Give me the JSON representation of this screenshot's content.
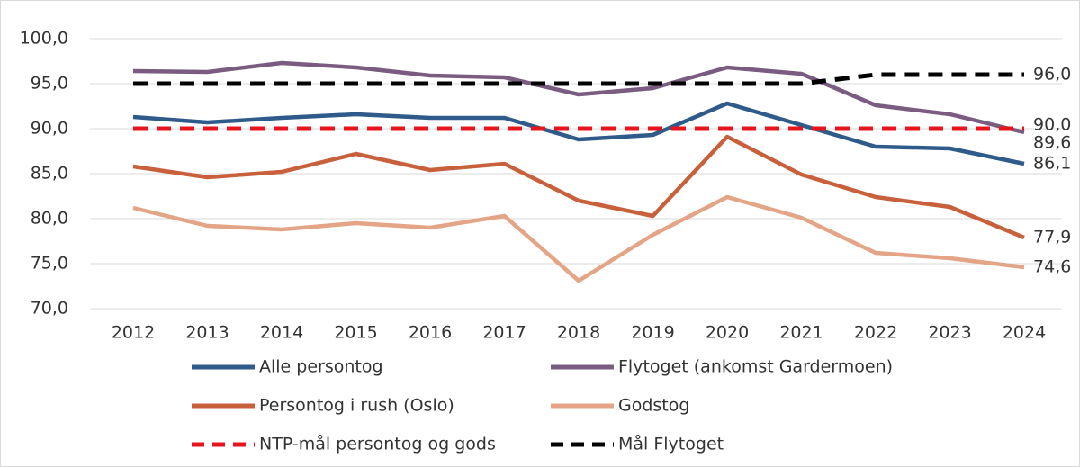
{
  "chart_data": {
    "type": "line",
    "categories": [
      "2012",
      "2013",
      "2014",
      "2015",
      "2016",
      "2017",
      "2018",
      "2019",
      "2020",
      "2021",
      "2022",
      "2023",
      "2024"
    ],
    "ylim": [
      70,
      100
    ],
    "yticks": [
      {
        "value": 70,
        "label": "70,0"
      },
      {
        "value": 75,
        "label": "75,0"
      },
      {
        "value": 80,
        "label": "80,0"
      },
      {
        "value": 85,
        "label": "85,0"
      },
      {
        "value": 90,
        "label": "90,0"
      },
      {
        "value": 95,
        "label": "95,0"
      },
      {
        "value": 100,
        "label": "100,0"
      }
    ],
    "grid": true,
    "series": [
      {
        "name": "Alle persontog",
        "color": "#2e5b8a",
        "dash": false,
        "values": [
          91.3,
          90.7,
          91.2,
          91.6,
          91.2,
          91.2,
          88.8,
          89.3,
          92.8,
          90.4,
          88.0,
          87.8,
          86.1
        ],
        "value_labels": [
          null,
          null,
          null,
          null,
          null,
          null,
          null,
          null,
          null,
          null,
          null,
          null,
          "86,1"
        ]
      },
      {
        "name": "Flytoget (ankomst Gardermoen)",
        "color": "#7a5c80",
        "dash": false,
        "values": [
          96.4,
          96.3,
          97.3,
          96.8,
          95.9,
          95.7,
          93.8,
          94.5,
          96.8,
          96.1,
          92.6,
          91.6,
          89.6
        ],
        "value_labels": [
          null,
          null,
          null,
          null,
          null,
          null,
          null,
          null,
          null,
          null,
          null,
          null,
          "89,6"
        ]
      },
      {
        "name": "Persontog i rush (Oslo)",
        "color": "#c8603c",
        "dash": false,
        "values": [
          85.8,
          84.6,
          85.2,
          87.2,
          85.4,
          86.1,
          82.0,
          80.3,
          89.1,
          84.9,
          82.4,
          81.3,
          77.9
        ],
        "value_labels": [
          null,
          null,
          null,
          null,
          null,
          null,
          null,
          null,
          null,
          null,
          null,
          null,
          "77,9"
        ]
      },
      {
        "name": "Godstog",
        "color": "#e3a585",
        "dash": false,
        "values": [
          81.2,
          79.2,
          78.8,
          79.5,
          79.0,
          80.3,
          73.1,
          78.2,
          82.4,
          80.1,
          76.2,
          75.6,
          74.6
        ],
        "value_labels": [
          null,
          null,
          null,
          null,
          null,
          null,
          null,
          null,
          null,
          null,
          null,
          null,
          "74,6"
        ]
      },
      {
        "name": "NTP-mål persontog og gods",
        "color": "#e8141c",
        "dash": true,
        "values": [
          90,
          90,
          90,
          90,
          90,
          90,
          90,
          90,
          90,
          90,
          90,
          90,
          90
        ],
        "value_labels": [
          null,
          null,
          null,
          null,
          null,
          null,
          null,
          null,
          null,
          null,
          null,
          null,
          "90,0"
        ]
      },
      {
        "name": "Mål Flytoget",
        "color": "#000000",
        "dash": true,
        "values": [
          95,
          95,
          95,
          95,
          95,
          95,
          95,
          95,
          95,
          95,
          96,
          96,
          96
        ],
        "value_labels": [
          null,
          null,
          null,
          null,
          null,
          null,
          null,
          null,
          null,
          null,
          null,
          null,
          "96,0"
        ]
      }
    ]
  }
}
